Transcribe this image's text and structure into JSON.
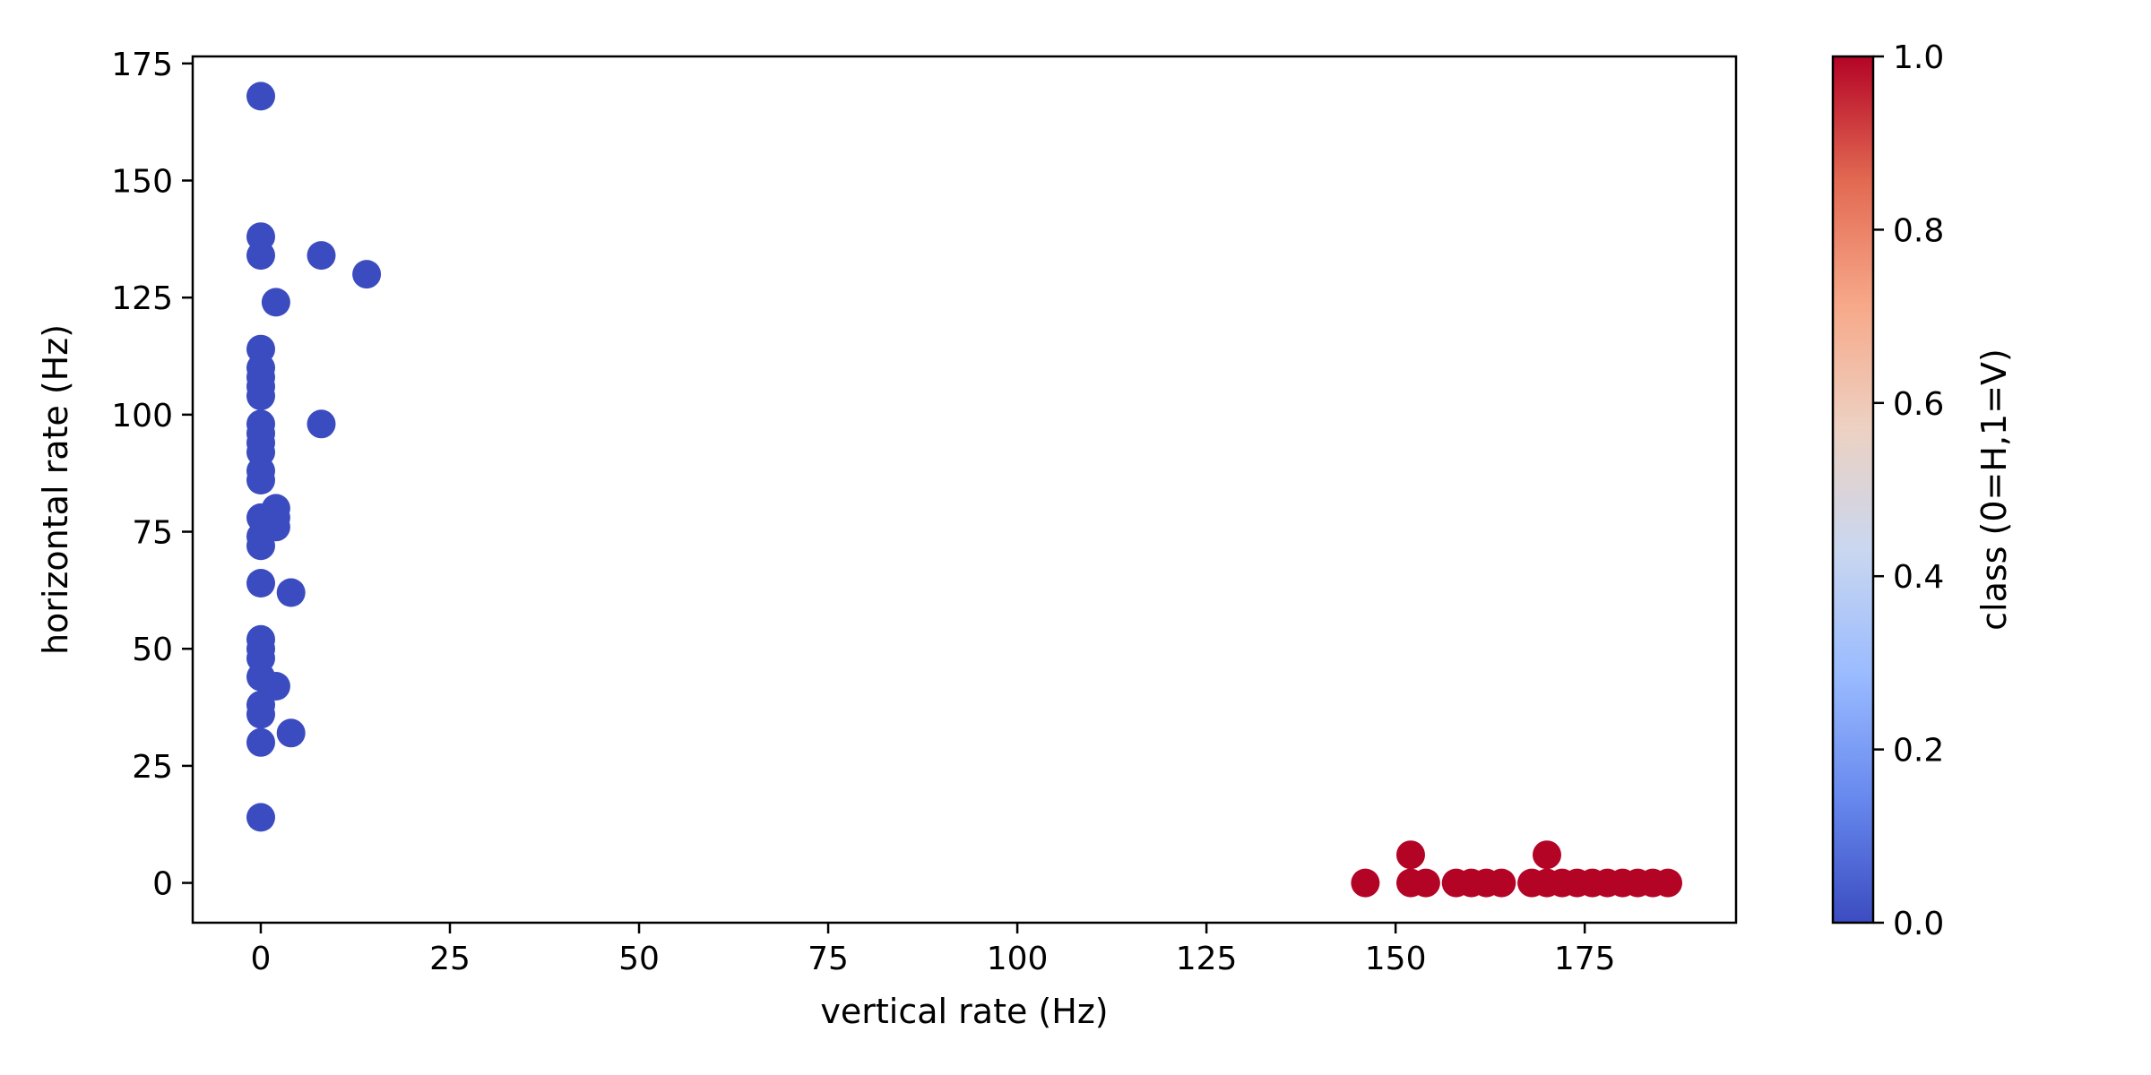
{
  "chart_data": {
    "type": "scatter",
    "xlabel": "vertical rate (Hz)",
    "ylabel": "horizontal rate (Hz)",
    "xlim": [
      -9,
      195
    ],
    "ylim": [
      -8.5,
      176.5
    ],
    "xticks": [
      0,
      25,
      50,
      75,
      100,
      125,
      150,
      175
    ],
    "yticks": [
      0,
      25,
      50,
      75,
      100,
      125,
      150,
      175
    ],
    "grid": false,
    "colormap": "coolwarm",
    "colorbar": {
      "label": "class (0=H,1=V)",
      "range": [
        0.0,
        1.0
      ],
      "ticks": [
        "0.0",
        "0.2",
        "0.4",
        "0.6",
        "0.8",
        "1.0"
      ],
      "colors": [
        "#3b4cc0",
        "#6788ee",
        "#9abbff",
        "#c9d7f0",
        "#edd1c2",
        "#f7a889",
        "#e26952",
        "#b40426"
      ]
    },
    "series": [
      {
        "class": 0,
        "color": "#3b4cc0",
        "points": [
          [
            0,
            168
          ],
          [
            0,
            138
          ],
          [
            0,
            134
          ],
          [
            8,
            134
          ],
          [
            14,
            130
          ],
          [
            2,
            124
          ],
          [
            0,
            114
          ],
          [
            0,
            110
          ],
          [
            0,
            108
          ],
          [
            0,
            106
          ],
          [
            0,
            104
          ],
          [
            8,
            98
          ],
          [
            0,
            98
          ],
          [
            0,
            96
          ],
          [
            0,
            94
          ],
          [
            0,
            92
          ],
          [
            0,
            88
          ],
          [
            0,
            86
          ],
          [
            2,
            80
          ],
          [
            2,
            78
          ],
          [
            2,
            76
          ],
          [
            0,
            78
          ],
          [
            0,
            74
          ],
          [
            0,
            72
          ],
          [
            0,
            64
          ],
          [
            4,
            62
          ],
          [
            0,
            52
          ],
          [
            0,
            50
          ],
          [
            0,
            48
          ],
          [
            0,
            44
          ],
          [
            2,
            42
          ],
          [
            0,
            38
          ],
          [
            0,
            36
          ],
          [
            4,
            32
          ],
          [
            0,
            30
          ],
          [
            0,
            14
          ]
        ]
      },
      {
        "class": 1,
        "color": "#b40426",
        "points": [
          [
            146,
            0
          ],
          [
            152,
            6
          ],
          [
            152,
            0
          ],
          [
            154,
            0
          ],
          [
            158,
            0
          ],
          [
            160,
            0
          ],
          [
            162,
            0
          ],
          [
            164,
            0
          ],
          [
            168,
            0
          ],
          [
            170,
            6
          ],
          [
            170,
            0
          ],
          [
            172,
            0
          ],
          [
            174,
            0
          ],
          [
            176,
            0
          ],
          [
            178,
            0
          ],
          [
            180,
            0
          ],
          [
            182,
            0
          ],
          [
            184,
            0
          ],
          [
            186,
            0
          ]
        ]
      }
    ]
  }
}
